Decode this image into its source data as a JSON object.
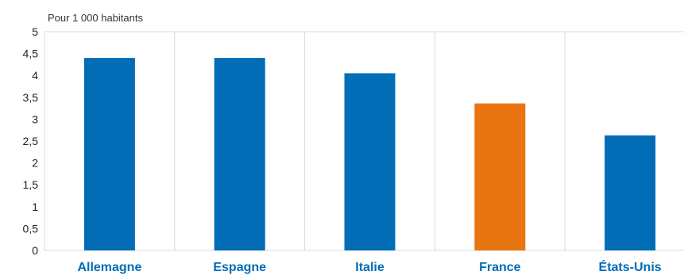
{
  "chart_data": {
    "type": "bar",
    "title": "",
    "xlabel": "",
    "ylabel": "Pour 1 000 habitants",
    "categories": [
      "Allemagne",
      "Espagne",
      "Italie",
      "France",
      "États-Unis"
    ],
    "values": [
      4.4,
      4.4,
      4.05,
      3.36,
      2.63
    ],
    "highlight_category": "France",
    "ylim": [
      0,
      5
    ],
    "yticks": [
      0,
      0.5,
      1,
      1.5,
      2,
      2.5,
      3,
      3.5,
      4,
      4.5,
      5
    ],
    "ytick_labels": [
      "0",
      "0,5",
      "1",
      "1,5",
      "2",
      "2,5",
      "3",
      "3,5",
      "4",
      "4,5",
      "5"
    ],
    "grid": "vertical category separators",
    "legend": "none",
    "colors": {
      "bar": "#006DB6",
      "highlight": "#E87511",
      "category_label": "#006DB6",
      "grid": "#D9D9D9"
    }
  }
}
